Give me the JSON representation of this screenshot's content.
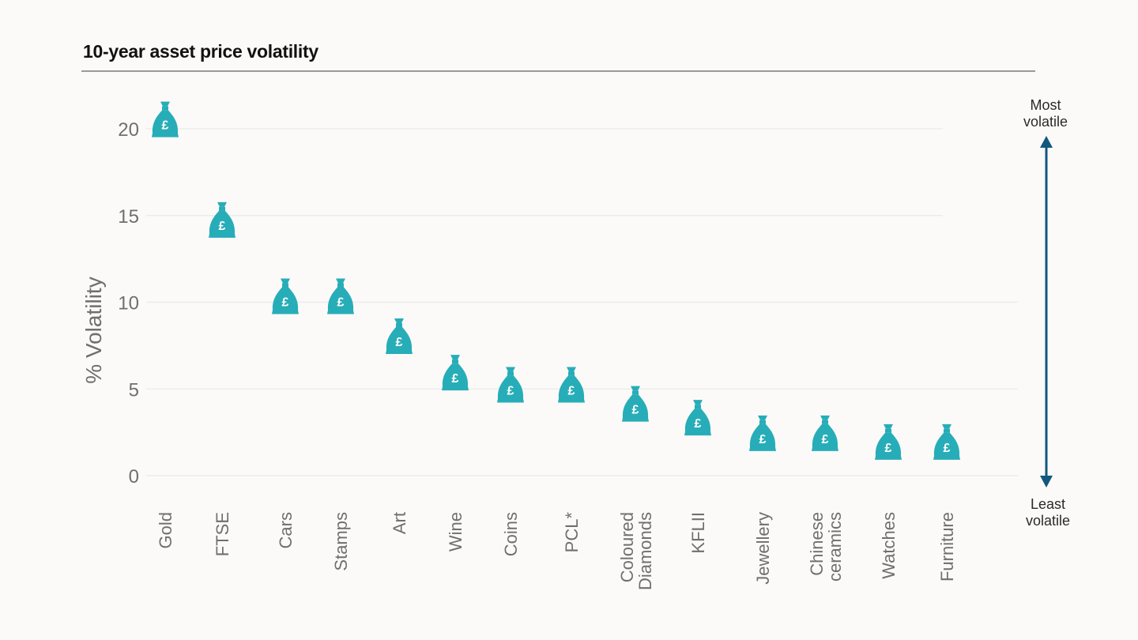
{
  "page": {
    "title": "10-year asset price volatility"
  },
  "colors": {
    "marker": "#27adb8",
    "arrow": "#11587e",
    "text": "#6f6f6f",
    "grid": "#ececec"
  },
  "icons": {
    "marker": "money-bag-icon",
    "arrow": "double-arrow-icon"
  },
  "chart_data": {
    "type": "scatter",
    "title": "10-year asset price volatility",
    "xlabel": "",
    "ylabel": "% Volatility",
    "ylim": [
      0,
      22
    ],
    "yticks": [
      0,
      5,
      10,
      15,
      20
    ],
    "grid": true,
    "marker_symbol": "£",
    "categories": [
      "Gold",
      "FTSE",
      "Cars",
      "Stamps",
      "Art",
      "Wine",
      "Coins",
      "PCL*",
      "Coloured Diamonds",
      "KFLII",
      "Jewellery",
      "Chinese ceramics",
      "Watches",
      "Furniture"
    ],
    "values": [
      20.2,
      14.4,
      10.0,
      10.0,
      7.7,
      5.6,
      4.9,
      4.9,
      3.8,
      3.0,
      2.1,
      2.1,
      1.6,
      1.6
    ],
    "annotations": {
      "top": "Most volatile",
      "bottom": "Least volatile"
    }
  }
}
